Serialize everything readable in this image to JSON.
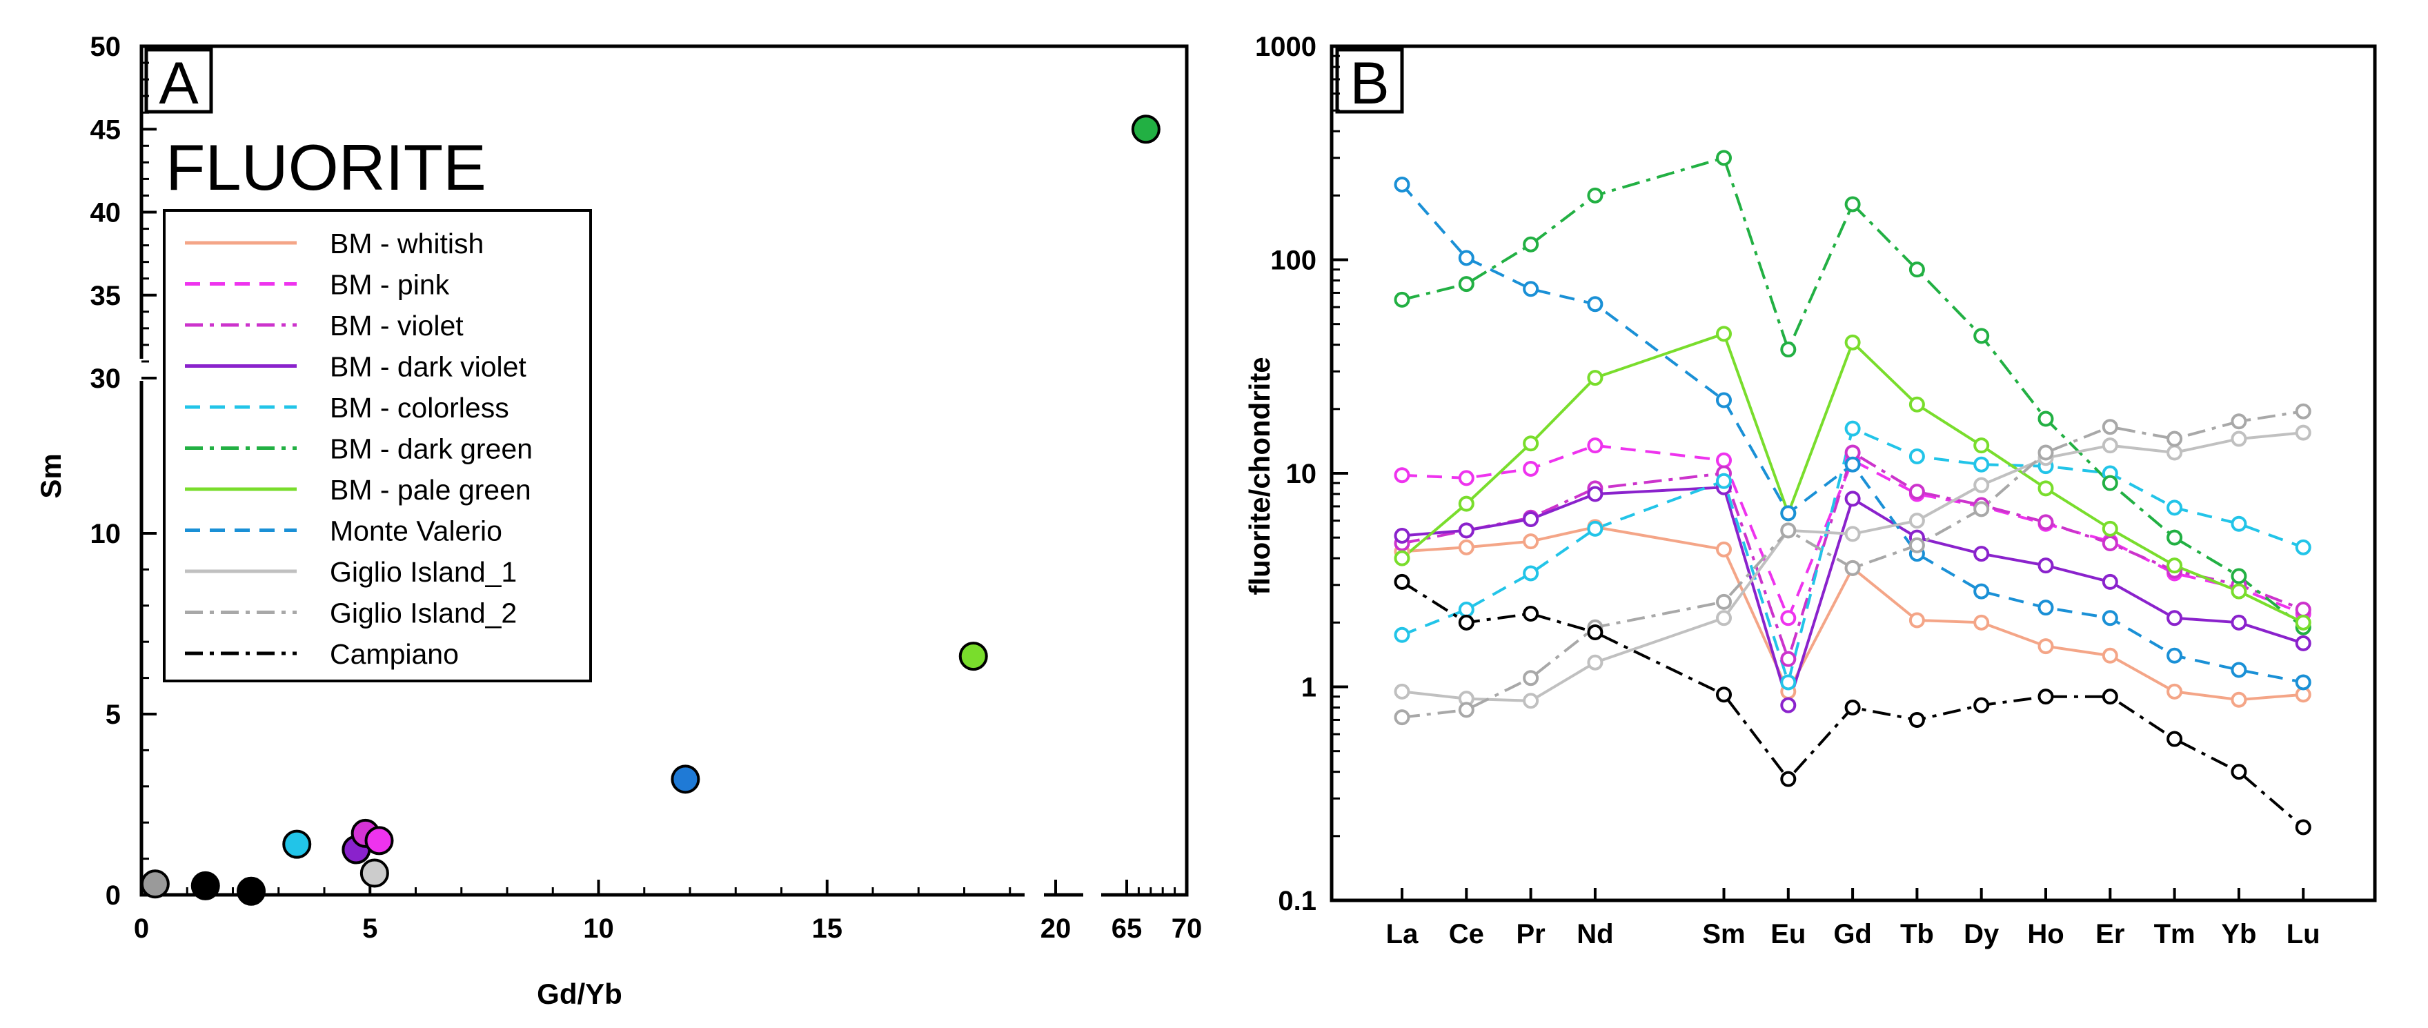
{
  "chart_data": [
    {
      "type": "scatter",
      "panel_label": "A",
      "title": "FLUORITE",
      "xlabel": "Gd/Yb",
      "ylabel": "Sm",
      "x_ticks": [
        "0",
        "5",
        "10",
        "15",
        "20",
        "65",
        "70"
      ],
      "y_ticks": [
        "0",
        "5",
        "10",
        "30",
        "35",
        "40",
        "45",
        "50"
      ],
      "x_axis_note": "broken axis: 0-20 then 65-70",
      "y_axis_note": "broken axis: 0-10 then 30-50",
      "points": [
        {
          "name": "Giglio Island_2",
          "x": 0.3,
          "y": 0.3,
          "color": "#9a9a9a"
        },
        {
          "name": "Campiano",
          "x": 1.4,
          "y": 0.25,
          "color": "#000000"
        },
        {
          "name": "Campiano",
          "x": 2.4,
          "y": 0.1,
          "color": "#000000"
        },
        {
          "name": "BM - colorless",
          "x": 3.4,
          "y": 1.4,
          "color": "#22c4e8"
        },
        {
          "name": "BM - dark violet",
          "x": 4.7,
          "y": 1.25,
          "color": "#8a22cc"
        },
        {
          "name": "BM - violet",
          "x": 4.9,
          "y": 1.7,
          "color": "#d433d4"
        },
        {
          "name": "BM - pink",
          "x": 5.2,
          "y": 1.5,
          "color": "#ee33ee"
        },
        {
          "name": "Giglio Island_1",
          "x": 5.1,
          "y": 0.6,
          "color": "#cccccc"
        },
        {
          "name": "Monte Valerio",
          "x": 11.9,
          "y": 3.2,
          "color": "#1f7ad6"
        },
        {
          "name": "BM - pale green",
          "x": 18.2,
          "y": 6.6,
          "color": "#79dd2c"
        },
        {
          "name": "BM - dark green",
          "x": 66.6,
          "y": 45,
          "color": "#22b043"
        }
      ],
      "legend": [
        {
          "name": "BM - whitish",
          "color": "#f4a587",
          "dash": "solid"
        },
        {
          "name": "BM - pink",
          "color": "#ee33ee",
          "dash": "dashed"
        },
        {
          "name": "BM - violet",
          "color": "#cc33cc",
          "dash": "dashdot"
        },
        {
          "name": "BM - dark violet",
          "color": "#8a22cc",
          "dash": "solid"
        },
        {
          "name": "BM - colorless",
          "color": "#22c4e8",
          "dash": "dashed"
        },
        {
          "name": "BM - dark green",
          "color": "#22b043",
          "dash": "dashdot"
        },
        {
          "name": "BM - pale green",
          "color": "#79dd2c",
          "dash": "solid"
        },
        {
          "name": "Monte Valerio",
          "color": "#1a90d6",
          "dash": "dashed"
        },
        {
          "name": "Giglio Island_1",
          "color": "#c0c0c0",
          "dash": "solid"
        },
        {
          "name": "Giglio Island_2",
          "color": "#a8a8a8",
          "dash": "dashdot"
        },
        {
          "name": "Campiano",
          "color": "#000000",
          "dash": "dashdot"
        }
      ]
    },
    {
      "type": "line",
      "panel_label": "B",
      "ylabel": "fluorite/chondrite",
      "yscale": "log",
      "ylim": [
        0.1,
        1000
      ],
      "y_ticks": [
        "0.1",
        "1",
        "10",
        "100",
        "1000"
      ],
      "categories": [
        "La",
        "Ce",
        "Pr",
        "Nd",
        "Sm",
        "Eu",
        "Gd",
        "Tb",
        "Dy",
        "Ho",
        "Er",
        "Tm",
        "Yb",
        "Lu"
      ],
      "category_slots": [
        0,
        1,
        2,
        3,
        5,
        6,
        7,
        8,
        9,
        10,
        11,
        12,
        13,
        14
      ],
      "series": [
        {
          "name": "BM - whitish",
          "color": "#f4a587",
          "dash": "solid",
          "values": [
            4.3,
            4.5,
            4.8,
            5.6,
            4.4,
            0.95,
            3.6,
            2.05,
            2.0,
            1.55,
            1.4,
            0.95,
            0.87,
            0.92
          ]
        },
        {
          "name": "BM - pink",
          "color": "#ee33ee",
          "dash": "dashed",
          "values": [
            9.8,
            9.5,
            10.5,
            13.5,
            11.5,
            2.1,
            11.5,
            8.0,
            7.0,
            5.8,
            4.8,
            3.4,
            2.9,
            2.2
          ]
        },
        {
          "name": "BM - violet",
          "color": "#cc33cc",
          "dash": "dashdot",
          "values": [
            4.7,
            5.4,
            6.2,
            8.5,
            10.0,
            1.35,
            12.5,
            8.2,
            7.1,
            5.9,
            4.7,
            3.5,
            3.0,
            2.3
          ]
        },
        {
          "name": "BM - dark violet",
          "color": "#8a22cc",
          "dash": "solid",
          "values": [
            5.1,
            5.4,
            6.1,
            8.0,
            8.6,
            0.82,
            7.6,
            5.0,
            4.2,
            3.7,
            3.1,
            2.1,
            2.0,
            1.6
          ]
        },
        {
          "name": "BM - colorless",
          "color": "#22c4e8",
          "dash": "dashed",
          "values": [
            1.75,
            2.3,
            3.4,
            5.5,
            9.2,
            1.05,
            16.2,
            12.0,
            11.0,
            10.8,
            10.0,
            6.9,
            5.8,
            4.5
          ]
        },
        {
          "name": "BM - dark green",
          "color": "#22b043",
          "dash": "dashdot",
          "values": [
            65,
            77,
            118,
            200,
            300,
            38,
            182,
            90,
            44,
            18,
            9.0,
            5.0,
            3.3,
            1.9
          ]
        },
        {
          "name": "BM - pale green",
          "color": "#79dd2c",
          "dash": "solid",
          "values": [
            4.0,
            7.2,
            13.8,
            28,
            45,
            6.5,
            41,
            21,
            13.5,
            8.5,
            5.5,
            3.7,
            2.8,
            2.0
          ]
        },
        {
          "name": "Monte Valerio",
          "color": "#1a90d6",
          "dash": "dashed",
          "values": [
            225,
            102,
            73,
            62,
            22,
            6.5,
            11.0,
            4.2,
            2.8,
            2.35,
            2.1,
            1.4,
            1.2,
            1.05
          ]
        },
        {
          "name": "Giglio Island_1",
          "color": "#c0c0c0",
          "dash": "solid",
          "values": [
            0.95,
            0.88,
            0.86,
            1.3,
            2.1,
            5.4,
            5.2,
            6.0,
            8.8,
            11.8,
            13.5,
            12.5,
            14.5,
            15.5
          ]
        },
        {
          "name": "Giglio Island_2",
          "color": "#a8a8a8",
          "dash": "dashdot",
          "values": [
            0.72,
            0.78,
            1.1,
            1.9,
            2.5,
            5.4,
            3.6,
            4.6,
            6.8,
            12.5,
            16.5,
            14.5,
            17.5,
            19.5
          ]
        },
        {
          "name": "Campiano",
          "color": "#000000",
          "dash": "dashdot",
          "values": [
            3.1,
            2.0,
            2.2,
            1.8,
            0.92,
            0.37,
            0.8,
            0.7,
            0.82,
            0.9,
            0.9,
            0.57,
            0.4,
            0.22
          ]
        }
      ]
    }
  ]
}
